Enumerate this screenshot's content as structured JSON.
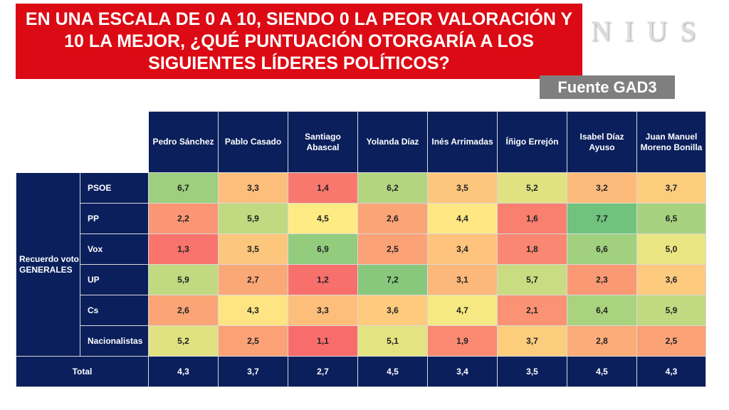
{
  "title": "EN UNA ESCALA DE 0 A 10, SIENDO 0 LA PEOR VALORACIÓN Y 10 LA MEJOR, ¿QUÉ PUNTUACIÓN OTORGARÍA A LOS SIGUIENTES LÍDERES POLÍTICOS?",
  "logo_text": "NIUS",
  "source": "Fuente GAD3",
  "chart_data": {
    "type": "table",
    "title": "EN UNA ESCALA DE 0 A 10, SIENDO 0 LA PEOR VALORACIÓN Y 10 LA MEJOR, ¿QUÉ PUNTUACIÓN OTORGARÍA A LOS SIGUIENTES LÍDERES POLÍTICOS?",
    "group_label": "Recuerdo voto GENERALES",
    "columns": [
      "Pedro Sánchez",
      "Pablo Casado",
      "Santiago Abascal",
      "Yolanda Díaz",
      "Inés Arrimadas",
      "Íñigo Errejón",
      "Isabel Díaz Ayuso",
      "Juan Manuel Moreno Bonilla"
    ],
    "rows": [
      {
        "label": "PSOE",
        "values": [
          "6,7",
          "3,3",
          "1,4",
          "6,2",
          "3,5",
          "5,2",
          "3,2",
          "3,7"
        ]
      },
      {
        "label": "PP",
        "values": [
          "2,2",
          "5,9",
          "4,5",
          "2,6",
          "4,4",
          "1,6",
          "7,7",
          "6,5"
        ]
      },
      {
        "label": "Vox",
        "values": [
          "1,3",
          "3,5",
          "6,9",
          "2,5",
          "3,4",
          "1,8",
          "6,6",
          "5,0"
        ]
      },
      {
        "label": "UP",
        "values": [
          "5,9",
          "2,7",
          "1,2",
          "7,2",
          "3,1",
          "5,7",
          "2,3",
          "3,6"
        ]
      },
      {
        "label": "Cs",
        "values": [
          "2,6",
          "4,3",
          "3,3",
          "3,6",
          "4,7",
          "2,1",
          "6,4",
          "5,9"
        ]
      },
      {
        "label": "Nacionalistas",
        "values": [
          "5,2",
          "2,5",
          "1,1",
          "5,1",
          "1,9",
          "3,7",
          "2,8",
          "2,5"
        ]
      }
    ],
    "total": {
      "label": "Total",
      "values": [
        "4,3",
        "3,7",
        "2,7",
        "4,5",
        "3,4",
        "3,5",
        "4,5",
        "4,3"
      ]
    },
    "scale": [
      0,
      10
    ],
    "colors": {
      "low": "#f8696b",
      "mid": "#ffeb84",
      "high": "#63be7b",
      "header": "#0a1f5c"
    }
  }
}
